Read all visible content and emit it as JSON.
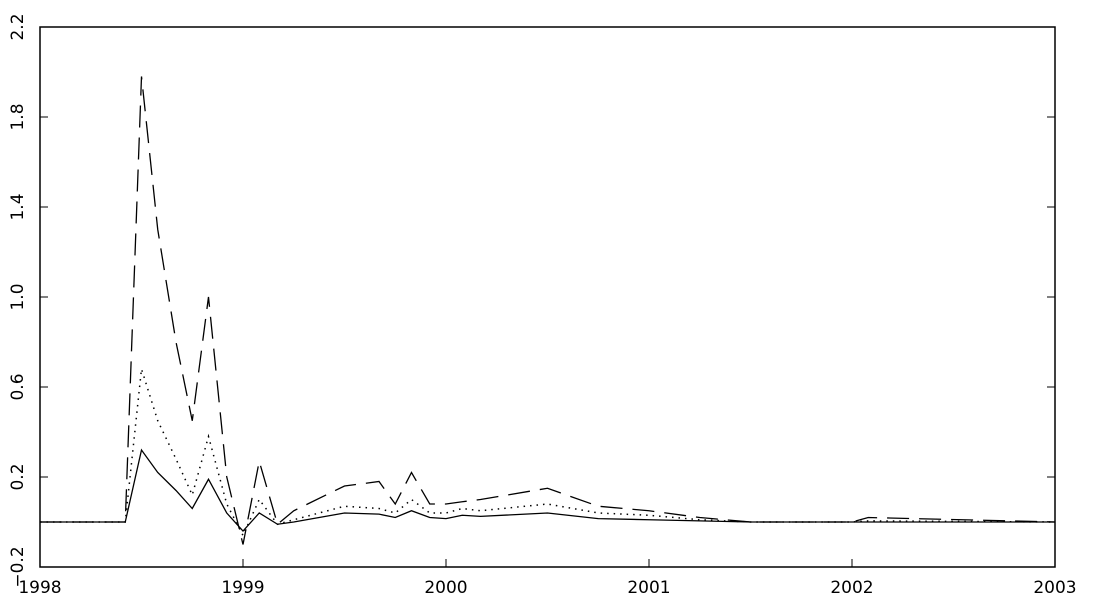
{
  "chart_data": {
    "type": "line",
    "x": [
      1998,
      1998.42,
      1998.5,
      1998.58,
      1998.67,
      1998.75,
      1998.83,
      1998.92,
      1999.0,
      1999.08,
      1999.17,
      1999.25,
      1999.5,
      1999.67,
      1999.75,
      1999.83,
      1999.92,
      2000.0,
      2000.08,
      2000.17,
      2000.5,
      2000.75,
      2001.0,
      2001.25,
      2001.5,
      2002.0,
      2002.08,
      2003.0
    ],
    "series": [
      {
        "color": "#000000",
        "dash": "solid",
        "values": [
          0,
          0,
          0.32,
          0.22,
          0.14,
          0.06,
          0.19,
          0.04,
          -0.04,
          0.04,
          -0.01,
          0,
          0.04,
          0.035,
          0.02,
          0.05,
          0.02,
          0.015,
          0.03,
          0.025,
          0.04,
          0.015,
          0.01,
          0.005,
          0,
          0,
          0,
          0
        ]
      },
      {
        "color": "#000000",
        "dash": "dotted",
        "values": [
          0,
          0,
          0.68,
          0.45,
          0.28,
          0.12,
          0.38,
          0.08,
          -0.06,
          0.1,
          -0.01,
          0.01,
          0.07,
          0.06,
          0.04,
          0.1,
          0.04,
          0.04,
          0.06,
          0.05,
          0.08,
          0.04,
          0.03,
          0.01,
          0,
          0,
          0.005,
          0
        ]
      },
      {
        "color": "#000000",
        "dash": "dashed",
        "values": [
          0,
          0,
          1.98,
          1.3,
          0.8,
          0.45,
          1.0,
          0.2,
          -0.1,
          0.27,
          -0.01,
          0.05,
          0.16,
          0.18,
          0.08,
          0.22,
          0.08,
          0.08,
          0.09,
          0.1,
          0.15,
          0.07,
          0.05,
          0.02,
          0,
          0,
          0.02,
          0
        ]
      }
    ],
    "xlim": [
      1998,
      2003
    ],
    "xticks": [
      1998,
      1999,
      2000,
      2001,
      2002,
      2003
    ],
    "ylim": [
      -0.2,
      2.2
    ],
    "yticks": [
      {
        "value": -0.2,
        "label": "−0.2"
      },
      0.2,
      0.6,
      {
        "value": 1,
        "label": "1.0"
      },
      1.4,
      1.8,
      2.2
    ]
  }
}
